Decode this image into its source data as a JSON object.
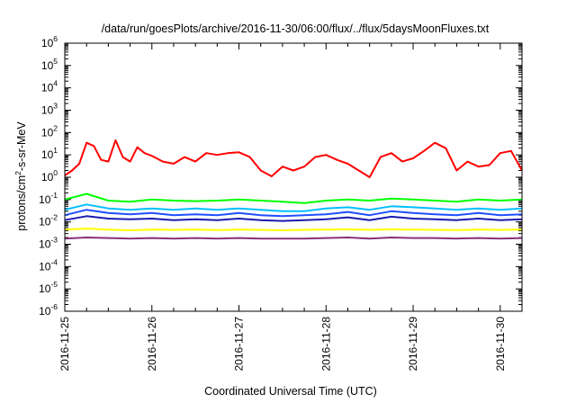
{
  "chart_data": {
    "type": "line",
    "title": "/data/run/goesPlots/archive/2016-11-30/06:00/flux/../flux/5daysMoonFluxes.txt",
    "xlabel": "Coordinated Universal Time (UTC)",
    "ylabel": {
      "pre": "protons/cm",
      "sup": "2",
      "post": "-s-sr-MeV"
    },
    "yscale": "log",
    "ylim": [
      1e-06,
      1000000.0
    ],
    "xlim": [
      "2016-11-25",
      "2016-11-30T06:00"
    ],
    "grid": false,
    "legend": "none",
    "y_ticks": [
      {
        "base": "10",
        "exp": "-6"
      },
      {
        "base": "10",
        "exp": "-5"
      },
      {
        "base": "10",
        "exp": "-4"
      },
      {
        "base": "10",
        "exp": "-3"
      },
      {
        "base": "10",
        "exp": "-2"
      },
      {
        "base": "10",
        "exp": "-1"
      },
      {
        "base": "10",
        "exp": "0"
      },
      {
        "base": "10",
        "exp": "1"
      },
      {
        "base": "10",
        "exp": "2"
      },
      {
        "base": "10",
        "exp": "3"
      },
      {
        "base": "10",
        "exp": "4"
      },
      {
        "base": "10",
        "exp": "5"
      },
      {
        "base": "10",
        "exp": "6"
      }
    ],
    "x_ticks": [
      "2016-11-25",
      "2016-11-26",
      "2016-11-27",
      "2016-11-28",
      "2016-11-29",
      "2016-11-30"
    ],
    "series": [
      {
        "color": "#ff0000",
        "x": [
          "2016-11-25T00:00",
          "2016-11-25T02:00",
          "2016-11-25T04:00",
          "2016-11-25T06:00",
          "2016-11-25T08:00",
          "2016-11-25T10:00",
          "2016-11-25T12:00",
          "2016-11-25T14:00",
          "2016-11-25T16:00",
          "2016-11-25T18:00",
          "2016-11-25T20:00",
          "2016-11-25T22:00",
          "2016-11-26T00:00",
          "2016-11-26T03:00",
          "2016-11-26T06:00",
          "2016-11-26T09:00",
          "2016-11-26T12:00",
          "2016-11-26T15:00",
          "2016-11-26T18:00",
          "2016-11-26T21:00",
          "2016-11-27T00:00",
          "2016-11-27T03:00",
          "2016-11-27T06:00",
          "2016-11-27T09:00",
          "2016-11-27T12:00",
          "2016-11-27T15:00",
          "2016-11-27T18:00",
          "2016-11-27T21:00",
          "2016-11-28T00:00",
          "2016-11-28T03:00",
          "2016-11-28T06:00",
          "2016-11-28T09:00",
          "2016-11-28T12:00",
          "2016-11-28T15:00",
          "2016-11-28T18:00",
          "2016-11-28T21:00",
          "2016-11-29T00:00",
          "2016-11-29T03:00",
          "2016-11-29T06:00",
          "2016-11-29T09:00",
          "2016-11-29T12:00",
          "2016-11-29T15:00",
          "2016-11-29T18:00",
          "2016-11-29T21:00",
          "2016-11-30T00:00",
          "2016-11-30T03:00",
          "2016-11-30T06:00"
        ],
        "values": [
          1.2,
          2.0,
          4.0,
          35,
          25,
          6,
          5,
          45,
          8,
          5,
          22,
          12,
          9,
          5,
          4,
          8,
          5,
          12,
          10,
          12,
          13,
          8,
          2,
          1.1,
          3,
          2,
          3,
          8,
          10,
          6,
          4,
          2,
          1.0,
          8,
          12,
          5,
          7,
          15,
          35,
          20,
          2,
          5,
          3,
          3.5,
          12,
          15,
          2
        ]
      },
      {
        "color": "#00ff00",
        "x": [
          "2016-11-25T00:00",
          "2016-11-25T06:00",
          "2016-11-25T12:00",
          "2016-11-25T18:00",
          "2016-11-26T00:00",
          "2016-11-26T06:00",
          "2016-11-26T12:00",
          "2016-11-26T18:00",
          "2016-11-27T00:00",
          "2016-11-27T06:00",
          "2016-11-27T12:00",
          "2016-11-27T18:00",
          "2016-11-28T00:00",
          "2016-11-28T06:00",
          "2016-11-28T12:00",
          "2016-11-28T18:00",
          "2016-11-29T00:00",
          "2016-11-29T06:00",
          "2016-11-29T12:00",
          "2016-11-29T18:00",
          "2016-11-30T00:00",
          "2016-11-30T06:00"
        ],
        "values": [
          0.1,
          0.18,
          0.09,
          0.08,
          0.1,
          0.09,
          0.085,
          0.09,
          0.1,
          0.09,
          0.08,
          0.07,
          0.09,
          0.1,
          0.09,
          0.11,
          0.1,
          0.09,
          0.08,
          0.1,
          0.09,
          0.1
        ]
      },
      {
        "color": "#00bfff",
        "x": [
          "2016-11-25T00:00",
          "2016-11-25T06:00",
          "2016-11-25T12:00",
          "2016-11-25T18:00",
          "2016-11-26T00:00",
          "2016-11-26T06:00",
          "2016-11-26T12:00",
          "2016-11-26T18:00",
          "2016-11-27T00:00",
          "2016-11-27T06:00",
          "2016-11-27T12:00",
          "2016-11-27T18:00",
          "2016-11-28T00:00",
          "2016-11-28T06:00",
          "2016-11-28T12:00",
          "2016-11-28T18:00",
          "2016-11-29T00:00",
          "2016-11-29T06:00",
          "2016-11-29T12:00",
          "2016-11-29T18:00",
          "2016-11-30T00:00",
          "2016-11-30T06:00"
        ],
        "values": [
          0.035,
          0.06,
          0.04,
          0.035,
          0.04,
          0.035,
          0.04,
          0.035,
          0.04,
          0.035,
          0.03,
          0.03,
          0.04,
          0.045,
          0.035,
          0.05,
          0.045,
          0.04,
          0.035,
          0.04,
          0.035,
          0.04
        ]
      },
      {
        "color": "#1f4fff",
        "x": [
          "2016-11-25T00:00",
          "2016-11-25T06:00",
          "2016-11-25T12:00",
          "2016-11-25T18:00",
          "2016-11-26T00:00",
          "2016-11-26T06:00",
          "2016-11-26T12:00",
          "2016-11-26T18:00",
          "2016-11-27T00:00",
          "2016-11-27T06:00",
          "2016-11-27T12:00",
          "2016-11-27T18:00",
          "2016-11-28T00:00",
          "2016-11-28T06:00",
          "2016-11-28T12:00",
          "2016-11-28T18:00",
          "2016-11-29T00:00",
          "2016-11-29T06:00",
          "2016-11-29T12:00",
          "2016-11-29T18:00",
          "2016-11-30T00:00",
          "2016-11-30T06:00"
        ],
        "values": [
          0.02,
          0.035,
          0.025,
          0.022,
          0.025,
          0.02,
          0.022,
          0.02,
          0.025,
          0.02,
          0.018,
          0.02,
          0.022,
          0.028,
          0.02,
          0.03,
          0.025,
          0.022,
          0.02,
          0.025,
          0.02,
          0.022
        ]
      },
      {
        "color": "#1a1ab0",
        "x": [
          "2016-11-25T00:00",
          "2016-11-25T06:00",
          "2016-11-25T12:00",
          "2016-11-25T18:00",
          "2016-11-26T00:00",
          "2016-11-26T06:00",
          "2016-11-26T12:00",
          "2016-11-26T18:00",
          "2016-11-27T00:00",
          "2016-11-27T06:00",
          "2016-11-27T12:00",
          "2016-11-27T18:00",
          "2016-11-28T00:00",
          "2016-11-28T06:00",
          "2016-11-28T12:00",
          "2016-11-28T18:00",
          "2016-11-29T00:00",
          "2016-11-29T06:00",
          "2016-11-29T12:00",
          "2016-11-29T18:00",
          "2016-11-30T00:00",
          "2016-11-30T06:00"
        ],
        "values": [
          0.012,
          0.018,
          0.014,
          0.013,
          0.014,
          0.012,
          0.013,
          0.012,
          0.014,
          0.012,
          0.011,
          0.012,
          0.013,
          0.016,
          0.012,
          0.017,
          0.014,
          0.013,
          0.012,
          0.014,
          0.012,
          0.013
        ]
      },
      {
        "color": "#ffff00",
        "x": [
          "2016-11-25T00:00",
          "2016-11-25T06:00",
          "2016-11-25T12:00",
          "2016-11-25T18:00",
          "2016-11-26T00:00",
          "2016-11-26T06:00",
          "2016-11-26T12:00",
          "2016-11-26T18:00",
          "2016-11-27T00:00",
          "2016-11-27T06:00",
          "2016-11-27T12:00",
          "2016-11-27T18:00",
          "2016-11-28T00:00",
          "2016-11-28T06:00",
          "2016-11-28T12:00",
          "2016-11-28T18:00",
          "2016-11-29T00:00",
          "2016-11-29T06:00",
          "2016-11-29T12:00",
          "2016-11-29T18:00",
          "2016-11-30T00:00",
          "2016-11-30T06:00"
        ],
        "values": [
          0.0045,
          0.005,
          0.0045,
          0.0042,
          0.0045,
          0.0044,
          0.0045,
          0.0043,
          0.0045,
          0.0044,
          0.0042,
          0.0044,
          0.0045,
          0.0046,
          0.0044,
          0.0046,
          0.0045,
          0.0044,
          0.0043,
          0.0045,
          0.0044,
          0.0045
        ]
      },
      {
        "color": "#8b2f7a",
        "x": [
          "2016-11-25T00:00",
          "2016-11-25T06:00",
          "2016-11-25T12:00",
          "2016-11-25T18:00",
          "2016-11-26T00:00",
          "2016-11-26T06:00",
          "2016-11-26T12:00",
          "2016-11-26T18:00",
          "2016-11-27T00:00",
          "2016-11-27T06:00",
          "2016-11-27T12:00",
          "2016-11-27T18:00",
          "2016-11-28T00:00",
          "2016-11-28T06:00",
          "2016-11-28T12:00",
          "2016-11-28T18:00",
          "2016-11-29T00:00",
          "2016-11-29T06:00",
          "2016-11-29T12:00",
          "2016-11-29T18:00",
          "2016-11-30T00:00",
          "2016-11-30T06:00"
        ],
        "values": [
          0.0018,
          0.002,
          0.0019,
          0.0018,
          0.0019,
          0.0018,
          0.0019,
          0.0018,
          0.0019,
          0.0018,
          0.0018,
          0.0018,
          0.0019,
          0.002,
          0.0018,
          0.002,
          0.0019,
          0.0019,
          0.0018,
          0.0019,
          0.0018,
          0.0019
        ]
      }
    ]
  }
}
